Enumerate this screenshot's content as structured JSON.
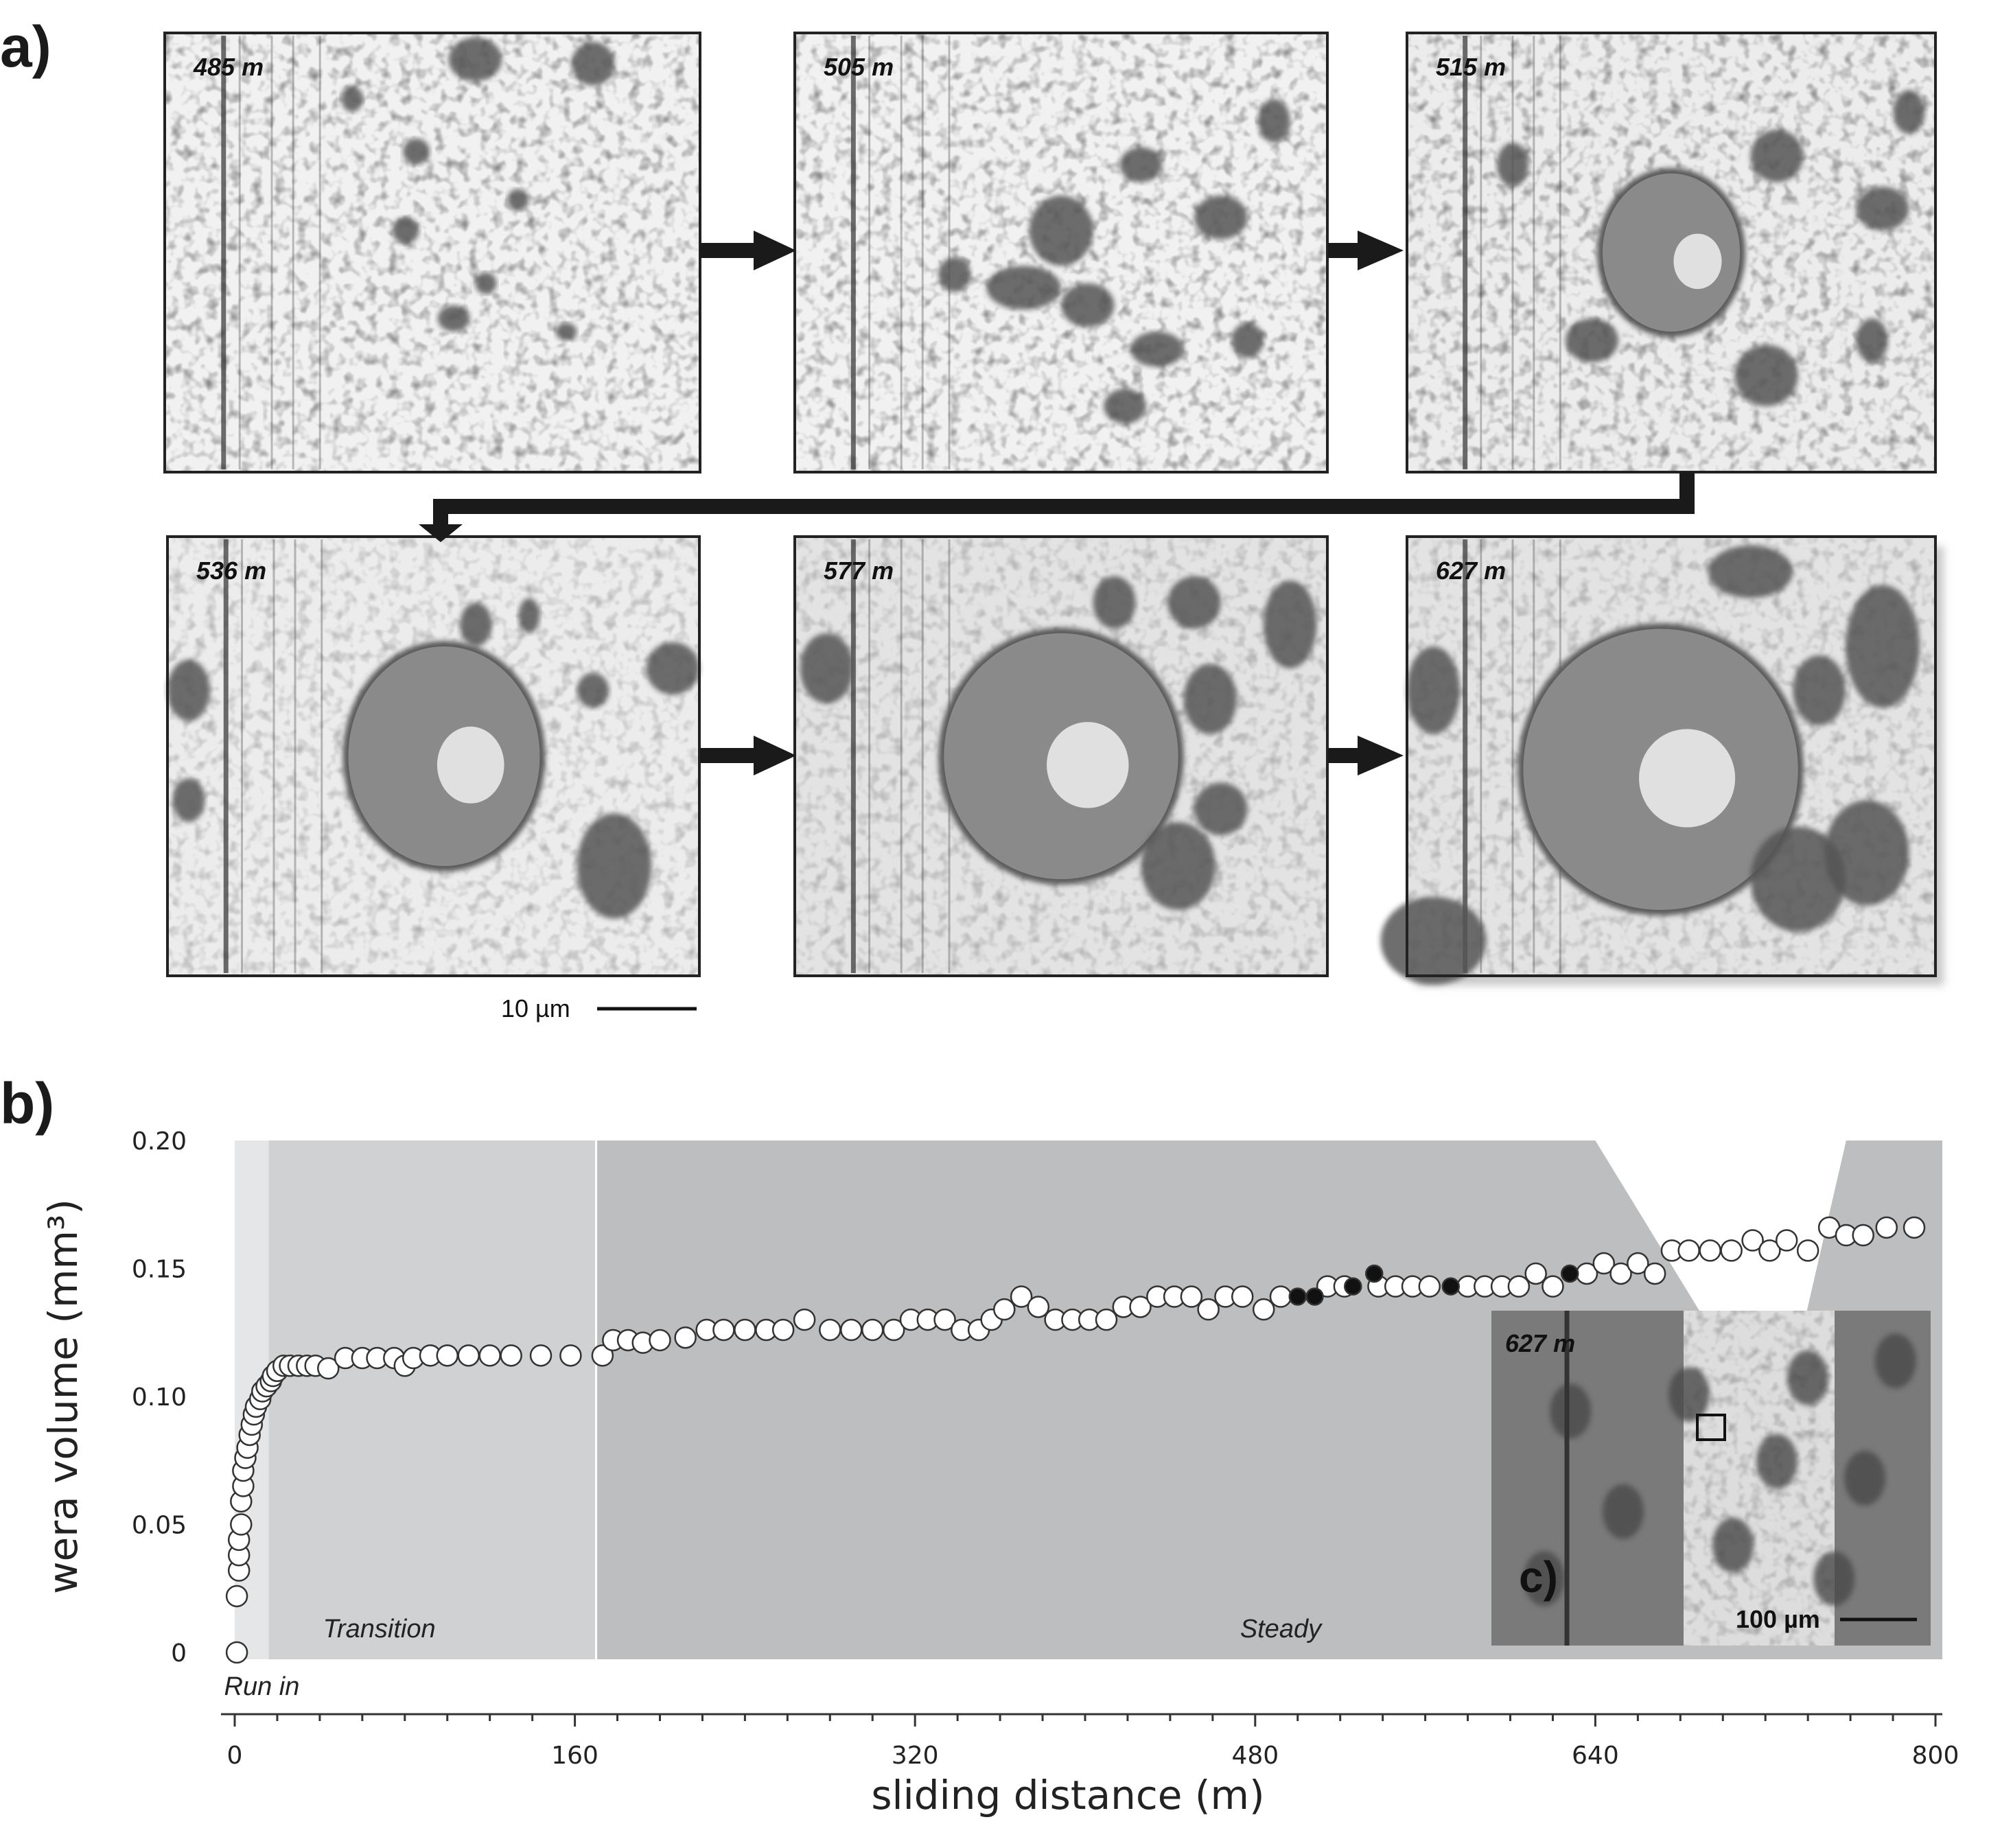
{
  "panel_a": {
    "label": "a)",
    "frames": [
      {
        "distance": "485 m"
      },
      {
        "distance": "505 m"
      },
      {
        "distance": "515 m"
      },
      {
        "distance": "536 m"
      },
      {
        "distance": "577 m"
      },
      {
        "distance": "627 m"
      }
    ],
    "scale_bar": "10 µm"
  },
  "panel_b": {
    "label": "b)"
  },
  "panel_c": {
    "label": "c)",
    "distance": "627 m",
    "scale_bar": "100 µm"
  },
  "chart_data": {
    "type": "scatter",
    "xlabel": "sliding distance (m)",
    "ylabel": "wera volume (mm³)",
    "xlim": [
      0,
      800
    ],
    "ylim": [
      0,
      0.2
    ],
    "xticks": [
      "0",
      "160",
      "320",
      "480",
      "640",
      "800"
    ],
    "yticks": [
      "0",
      "0.05",
      "0.10",
      "0.15",
      "0.20"
    ],
    "regions": [
      {
        "name": "Run in",
        "x": [
          0,
          16
        ],
        "color": "#e4e6e8"
      },
      {
        "name": "Transition",
        "x": [
          16,
          170
        ],
        "color": "#cfd1d3"
      },
      {
        "name": "Steady",
        "x": [
          170,
          800
        ],
        "color": "#bcbec0"
      }
    ],
    "series": [
      {
        "marker": "open-circle",
        "points": [
          [
            1,
            0.0
          ],
          [
            1,
            0.022
          ],
          [
            2,
            0.032
          ],
          [
            2,
            0.038
          ],
          [
            2,
            0.044
          ],
          [
            3,
            0.05
          ],
          [
            3,
            0.059
          ],
          [
            4,
            0.065
          ],
          [
            4,
            0.071
          ],
          [
            5,
            0.076
          ],
          [
            6,
            0.08
          ],
          [
            7,
            0.085
          ],
          [
            8,
            0.089
          ],
          [
            9,
            0.093
          ],
          [
            10,
            0.096
          ],
          [
            12,
            0.099
          ],
          [
            13,
            0.102
          ],
          [
            15,
            0.104
          ],
          [
            17,
            0.106
          ],
          [
            18,
            0.108
          ],
          [
            20,
            0.11
          ],
          [
            23,
            0.112
          ],
          [
            26,
            0.112
          ],
          [
            30,
            0.112
          ],
          [
            34,
            0.112
          ],
          [
            38,
            0.112
          ],
          [
            44,
            0.111
          ],
          [
            52,
            0.115
          ],
          [
            60,
            0.115
          ],
          [
            67,
            0.115
          ],
          [
            75,
            0.115
          ],
          [
            80,
            0.112
          ],
          [
            84,
            0.115
          ],
          [
            92,
            0.116
          ],
          [
            100,
            0.116
          ],
          [
            110,
            0.116
          ],
          [
            120,
            0.116
          ],
          [
            130,
            0.116
          ],
          [
            144,
            0.116
          ],
          [
            158,
            0.116
          ],
          [
            173,
            0.116
          ],
          [
            178,
            0.122
          ],
          [
            185,
            0.122
          ],
          [
            192,
            0.121
          ],
          [
            200,
            0.122
          ],
          [
            212,
            0.123
          ],
          [
            222,
            0.126
          ],
          [
            230,
            0.126
          ],
          [
            240,
            0.126
          ],
          [
            250,
            0.126
          ],
          [
            258,
            0.126
          ],
          [
            268,
            0.13
          ],
          [
            280,
            0.126
          ],
          [
            290,
            0.126
          ],
          [
            300,
            0.126
          ],
          [
            310,
            0.126
          ],
          [
            318,
            0.13
          ],
          [
            326,
            0.13
          ],
          [
            334,
            0.13
          ],
          [
            342,
            0.126
          ],
          [
            350,
            0.126
          ],
          [
            356,
            0.13
          ],
          [
            362,
            0.134
          ],
          [
            370,
            0.139
          ],
          [
            378,
            0.135
          ],
          [
            386,
            0.13
          ],
          [
            394,
            0.13
          ],
          [
            402,
            0.13
          ],
          [
            410,
            0.13
          ],
          [
            418,
            0.135
          ],
          [
            426,
            0.135
          ],
          [
            434,
            0.139
          ],
          [
            442,
            0.139
          ],
          [
            450,
            0.139
          ],
          [
            458,
            0.134
          ],
          [
            466,
            0.139
          ],
          [
            474,
            0.139
          ],
          [
            484,
            0.134
          ],
          [
            492,
            0.139
          ],
          [
            514,
            0.143
          ],
          [
            522,
            0.143
          ],
          [
            538,
            0.143
          ],
          [
            546,
            0.143
          ],
          [
            554,
            0.143
          ],
          [
            562,
            0.143
          ],
          [
            580,
            0.143
          ],
          [
            588,
            0.143
          ],
          [
            596,
            0.143
          ],
          [
            604,
            0.143
          ],
          [
            612,
            0.148
          ],
          [
            620,
            0.143
          ],
          [
            636,
            0.148
          ],
          [
            644,
            0.152
          ],
          [
            652,
            0.148
          ],
          [
            660,
            0.152
          ],
          [
            668,
            0.148
          ],
          [
            676,
            0.157
          ],
          [
            684,
            0.157
          ],
          [
            694,
            0.157
          ],
          [
            704,
            0.157
          ],
          [
            714,
            0.161
          ],
          [
            722,
            0.157
          ],
          [
            730,
            0.161
          ],
          [
            740,
            0.157
          ],
          [
            750,
            0.166
          ],
          [
            758,
            0.163
          ],
          [
            766,
            0.163
          ],
          [
            777,
            0.166
          ],
          [
            790,
            0.166
          ]
        ]
      },
      {
        "marker": "filled-circle",
        "points": [
          [
            500,
            0.139
          ],
          [
            508,
            0.139
          ],
          [
            526,
            0.143
          ],
          [
            536,
            0.148
          ],
          [
            572,
            0.143
          ],
          [
            628,
            0.148
          ]
        ]
      }
    ]
  }
}
